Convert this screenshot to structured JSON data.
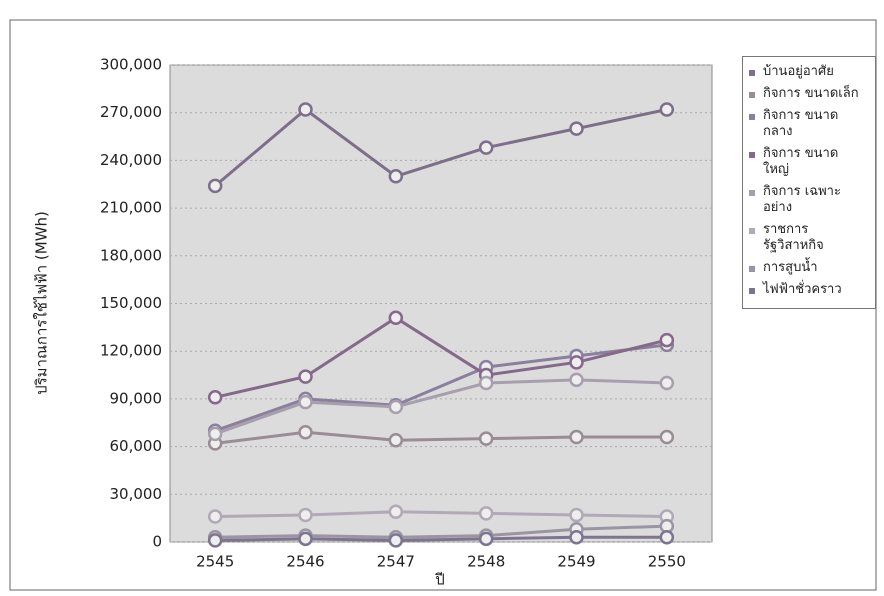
{
  "chart_data": {
    "type": "line",
    "y_label": "ปริมาณการใช้ไฟฟ้า (MWh)",
    "x_label": "ปี",
    "categories": [
      "2545",
      "2546",
      "2547",
      "2548",
      "2549",
      "2550"
    ],
    "series": [
      {
        "name": "บ้านอยู่อาศัย",
        "color": "#7d6f8a",
        "values": [
          224000,
          272000,
          230000,
          248000,
          260000,
          272000
        ]
      },
      {
        "name": "กิจการ ขนาดเล็ก",
        "color": "#9a8c94",
        "values": [
          62000,
          69000,
          64000,
          65000,
          66000,
          66000
        ]
      },
      {
        "name": "กิจการ ขนาดกลาง",
        "color": "#8a7f9c",
        "values": [
          70000,
          90000,
          86000,
          110000,
          117000,
          124000
        ]
      },
      {
        "name": "กิจการ ขนาดใหญ่",
        "color": "#85698a",
        "values": [
          91000,
          104000,
          141000,
          105000,
          113000,
          127000
        ]
      },
      {
        "name": "กิจการ เฉพาะอย่าง",
        "color": "#a79fae",
        "values": [
          68000,
          88000,
          85000,
          100000,
          102000,
          100000
        ]
      },
      {
        "name": "ราชการ รัฐวิสาหกิจ",
        "color": "#b2a9b6",
        "values": [
          16000,
          17000,
          19000,
          18000,
          17000,
          16000
        ]
      },
      {
        "name": "การสูบน้ำ",
        "color": "#9b94a2",
        "values": [
          3000,
          4000,
          3000,
          4000,
          8000,
          10000
        ]
      },
      {
        "name": "ไฟฟ้าชั่วคราว",
        "color": "#7e7490",
        "values": [
          1000,
          2000,
          1000,
          2000,
          3000,
          3000
        ]
      }
    ],
    "ylim": [
      0,
      300000
    ],
    "yticks": [
      0,
      {
        "value": 30000,
        "label": "30,000"
      },
      {
        "value": 60000,
        "label": "60,000"
      },
      {
        "value": 90000,
        "label": "90,000"
      },
      {
        "value": 120000,
        "label": "120,000"
      },
      {
        "value": 150000,
        "label": "150,000"
      },
      {
        "value": 180000,
        "label": "180,000"
      },
      {
        "value": 210000,
        "label": "210,000"
      },
      {
        "value": 240000,
        "label": "240,000"
      },
      {
        "value": 270000,
        "label": "270,000"
      },
      {
        "value": 300000,
        "label": "300,000"
      }
    ],
    "grid": true
  }
}
